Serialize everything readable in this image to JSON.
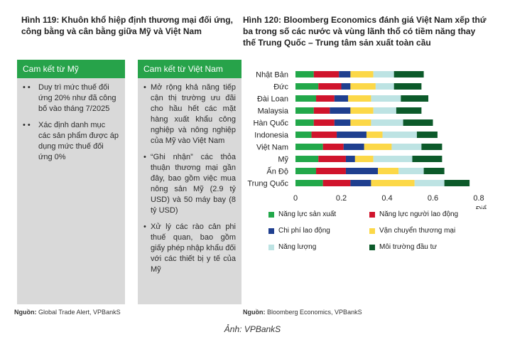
{
  "left_figure": {
    "title": "Hình 119: Khuôn khổ hiệp định thương mại đối ứng, công bằng và cân bằng giữa Mỹ và Việt Nam",
    "columns": [
      {
        "header": "Cam kết từ Mỹ",
        "bullets": [
          "Duy trì mức thuế đối ứng 20% như đã công bố vào tháng 7/2025",
          "Xác định danh mục các sản phẩm được áp dụng mức thuế đối ứng 0%"
        ]
      },
      {
        "header": "Cam kết từ Việt Nam",
        "bullets": [
          "Mở rộng khả năng tiếp cận thị trường ưu đãi cho hầu hết các mặt hàng xuất khẩu công nghiệp và nông nghiệp của Mỹ vào Việt Nam",
          "“Ghi nhận” các thỏa thuận thương mại gần đây, bao gồm việc mua nông sản Mỹ (2.9 tỷ USD) và 50 máy bay (8 tỷ USD)",
          "Xử lý các rào cản phi thuế quan, bao gồm giấy phép nhập khẩu đối với các thiết bị y tế của Mỹ"
        ]
      }
    ],
    "bullet_markers": [
      "• •",
      "• •",
      "•",
      "•",
      "•"
    ],
    "source_label": "Nguồn:",
    "source_text": "Global Trade Alert, VPBankS"
  },
  "right_figure": {
    "title": "Hình 120: Bloomberg Economics đánh giá Việt Nam xếp thứ ba trong số các nước và vùng lãnh thổ có tiềm năng thay thế Trung Quốc – Trung tâm sản xuất toàn cầu",
    "source_label": "Nguồn:",
    "source_text": "Bloomberg Economics, VPBankS"
  },
  "caption": "Ảnh: VPBankS",
  "chart_data": {
    "type": "bar",
    "orientation": "horizontal",
    "stacked": true,
    "categories": [
      "Nhật Bản",
      "Đức",
      "Đài Loan",
      "Malaysia",
      "Hàn Quốc",
      "Indonesia",
      "Việt Nam",
      "Mỹ",
      "Ấn Độ",
      "Trung Quốc"
    ],
    "series": [
      {
        "name": "Năng lực sản xuất",
        "color": "#22a84a",
        "values": [
          0.08,
          0.1,
          0.09,
          0.08,
          0.08,
          0.07,
          0.12,
          0.1,
          0.09,
          0.12
        ]
      },
      {
        "name": "Năng lực người lao động",
        "color": "#d0142c",
        "values": [
          0.11,
          0.1,
          0.08,
          0.07,
          0.09,
          0.11,
          0.09,
          0.12,
          0.13,
          0.12
        ]
      },
      {
        "name": "Chi phí lao động",
        "color": "#1f3f8f",
        "values": [
          0.05,
          0.04,
          0.06,
          0.09,
          0.07,
          0.13,
          0.09,
          0.04,
          0.14,
          0.09
        ]
      },
      {
        "name": "Vận chuyển thương mại",
        "color": "#fcd848",
        "values": [
          0.1,
          0.11,
          0.1,
          0.1,
          0.09,
          0.07,
          0.12,
          0.08,
          0.09,
          0.19
        ]
      },
      {
        "name": "Năng lượng",
        "color": "#bde3e3",
        "values": [
          0.09,
          0.08,
          0.13,
          0.1,
          0.14,
          0.15,
          0.13,
          0.17,
          0.11,
          0.13
        ]
      },
      {
        "name": "Môi trường đầu tư",
        "color": "#0c5a2a",
        "values": [
          0.13,
          0.12,
          0.12,
          0.11,
          0.13,
          0.09,
          0.09,
          0.13,
          0.09,
          0.11
        ]
      }
    ],
    "xlabel": "Điểm",
    "xlim": [
      0,
      0.8
    ],
    "xticks": [
      0,
      0.2,
      0.4,
      0.6,
      0.8
    ],
    "xtick_labels": [
      "0",
      "0.2",
      "0.4",
      "0.6",
      "0.8"
    ],
    "grid": false,
    "legend_position": "bottom"
  }
}
